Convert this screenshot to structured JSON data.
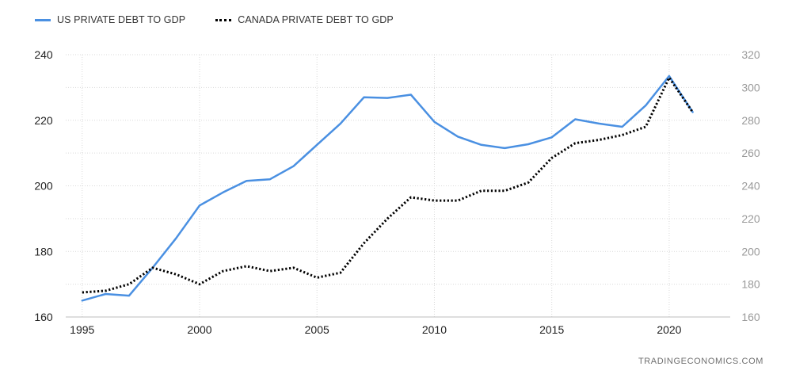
{
  "legend": {
    "us_label": "US PRIVATE DEBT TO GDP",
    "canada_label": "CANADA PRIVATE DEBT TO GDP"
  },
  "source": "TRADINGECONOMICS.COM",
  "colors": {
    "us": "#4a90e2",
    "canada": "#000000",
    "grid": "#d9d9d9"
  },
  "chart_data": {
    "type": "line",
    "title": "",
    "xlabel": "",
    "ylabel": "",
    "x": [
      1995,
      1996,
      1997,
      1998,
      1999,
      2000,
      2001,
      2002,
      2003,
      2004,
      2005,
      2006,
      2007,
      2008,
      2009,
      2010,
      2011,
      2012,
      2013,
      2014,
      2015,
      2016,
      2017,
      2018,
      2019,
      2020,
      2021
    ],
    "xticks": [
      "1995",
      "2000",
      "2005",
      "2010",
      "2015",
      "2020"
    ],
    "xlim": [
      1994.3,
      2022.6
    ],
    "y_left": {
      "lim": [
        160,
        240
      ],
      "ticks": [
        "160",
        "180",
        "200",
        "220",
        "240"
      ]
    },
    "y_right": {
      "lim": [
        160,
        320
      ],
      "ticks": [
        "160",
        "180",
        "200",
        "220",
        "240",
        "260",
        "280",
        "300",
        "320"
      ]
    },
    "grid": true,
    "legend_position": "top-left",
    "series": [
      {
        "name": "US PRIVATE DEBT TO GDP",
        "axis": "left",
        "style": "solid",
        "values": [
          165,
          167,
          166.5,
          175,
          184,
          194,
          198,
          201.5,
          202,
          206,
          212.5,
          219,
          227,
          226.8,
          227.8,
          219.5,
          215,
          212.5,
          211.5,
          212.7,
          214.8,
          220.3,
          219,
          218,
          224.5,
          233.5,
          222.5
        ]
      },
      {
        "name": "CANADA PRIVATE DEBT TO GDP",
        "axis": "right",
        "style": "dotted",
        "values": [
          175,
          176,
          180,
          190,
          186,
          180,
          188,
          191,
          188,
          190,
          184,
          187,
          205,
          220,
          233,
          231,
          231,
          237,
          237,
          242,
          257,
          266,
          268,
          271,
          276,
          306,
          285
        ]
      }
    ]
  }
}
